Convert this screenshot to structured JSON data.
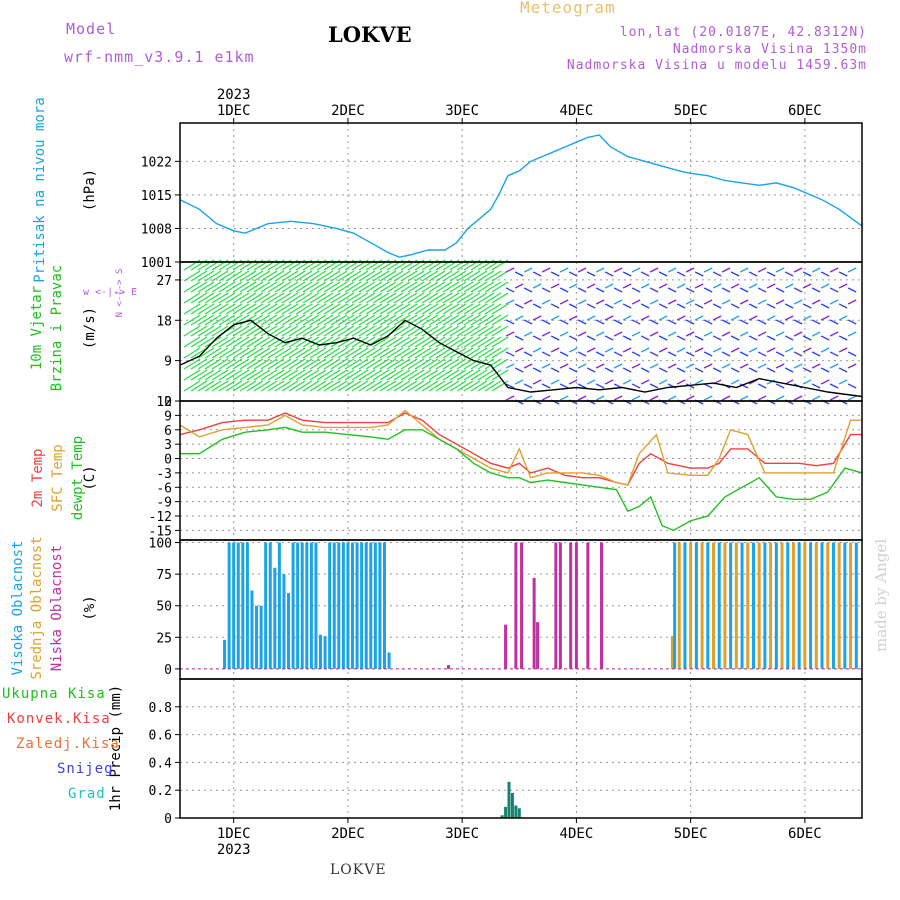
{
  "header": {
    "model_label": "Model",
    "model_name": "wrf-nmm_v3.9.1 e1km",
    "location": "LOKVE",
    "meteogram": "Meteogram",
    "lonlat": "lon,lat (20.0187E, 42.8312N)",
    "elevation": "Nadmorska Visina 1350m",
    "model_elevation": "Nadmorska Visina u modelu 1459.63m",
    "made_by": "made by Angel",
    "footer_location": "LOKVE"
  },
  "colors": {
    "pressure": "#1aa3e8",
    "wind_speed": "#000000",
    "temp_2m": "#f04040",
    "temp_sfc": "#e0a030",
    "dewpt": "#20c020",
    "cloud_high": "#1aa3e8",
    "cloud_mid": "#e0a030",
    "cloud_low": "#c030a0",
    "precip_total": "#20c020",
    "precip_conv": "#f04040",
    "precip_frozen": "#f07030",
    "precip_snow": "#4040e0",
    "precip_grad": "#20c0c0",
    "precip_bar": "#1a8070"
  },
  "chart_data": {
    "type": "line",
    "x_axis": {
      "year": "2023",
      "days": [
        "1DEC",
        "2DEC",
        "3DEC",
        "4DEC",
        "5DEC",
        "6DEC"
      ],
      "day_positions": [
        1,
        2,
        3,
        4,
        5,
        6
      ],
      "range": [
        0.53,
        6.5
      ]
    },
    "panels": [
      {
        "id": "pressure",
        "ylabel": "(hPa)",
        "side_label": [
          "Pritisak na nivou mora"
        ],
        "ylim": [
          1001,
          1030
        ],
        "yticks": [
          1001,
          1008,
          1015,
          1022
        ],
        "series": [
          {
            "key": "pressure",
            "x": [
              0.53,
              0.7,
              0.85,
              1.0,
              1.1,
              1.3,
              1.5,
              1.7,
              1.9,
              2.05,
              2.2,
              2.35,
              2.45,
              2.55,
              2.7,
              2.85,
              2.95,
              3.05,
              3.15,
              3.25,
              3.32,
              3.4,
              3.5,
              3.6,
              3.7,
              3.8,
              3.9,
              4.0,
              4.1,
              4.2,
              4.3,
              4.45,
              4.6,
              4.75,
              4.9,
              5.0,
              5.15,
              5.3,
              5.45,
              5.6,
              5.75,
              5.9,
              6.0,
              6.15,
              6.3,
              6.5
            ],
            "y": [
              1014,
              1012,
              1009,
              1007.5,
              1007,
              1009,
              1009.5,
              1009,
              1008,
              1007,
              1005,
              1003,
              1002,
              1002.5,
              1003.5,
              1003.5,
              1005,
              1008,
              1010,
              1012,
              1015,
              1019,
              1020,
              1022,
              1023,
              1024,
              1025,
              1026,
              1027,
              1027.5,
              1025,
              1023,
              1022,
              1021,
              1020,
              1019.5,
              1019,
              1018,
              1017.5,
              1017,
              1017.5,
              1016.5,
              1015.5,
              1014,
              1012,
              1008.5
            ]
          }
        ]
      },
      {
        "id": "wind",
        "ylabel": "(m/s)",
        "side_label": [
          "10m Vjetar",
          "Brzina i Pravac"
        ],
        "compass": "w <-|-> E",
        "compass_vertical": "N <-|-> S",
        "ylim": [
          0,
          31
        ],
        "yticks": [
          0,
          9,
          18,
          27
        ],
        "barb_colors_by_region": [
          {
            "from": 0.53,
            "to": 3.35,
            "colors": [
              "#20e040",
              "#a0e020",
              "#f0e040",
              "#f0a030",
              "#f04060",
              "#c020c0"
            ]
          },
          {
            "from": 3.35,
            "to": 6.5,
            "colors": [
              "#8020e0",
              "#2040f0",
              "#20a0f0",
              "#4040e0"
            ]
          }
        ],
        "series": [
          {
            "key": "wind_speed",
            "x": [
              0.53,
              0.7,
              0.85,
              1.0,
              1.15,
              1.3,
              1.45,
              1.6,
              1.75,
              1.9,
              2.05,
              2.2,
              2.35,
              2.5,
              2.65,
              2.8,
              2.95,
              3.1,
              3.25,
              3.4,
              3.6,
              3.8,
              4.0,
              4.2,
              4.4,
              4.6,
              4.8,
              5.0,
              5.2,
              5.4,
              5.6,
              5.8,
              6.0,
              6.2,
              6.5
            ],
            "y": [
              8,
              10,
              14,
              17,
              18,
              15,
              13,
              14,
              12.5,
              13,
              14,
              12.5,
              14.5,
              18,
              16,
              13,
              11,
              9,
              8,
              3,
              2,
              2.5,
              3,
              2.5,
              3,
              2,
              3,
              3.5,
              4,
              3,
              5,
              4,
              3,
              2,
              1
            ]
          }
        ]
      },
      {
        "id": "temperature",
        "ylabel": "(C)",
        "side_label": [
          "2m Temp",
          "SFC Temp",
          "dewpt Temp"
        ],
        "ylim": [
          -17,
          12
        ],
        "yticks": [
          -15,
          -12,
          -9,
          -6,
          -3,
          0,
          3,
          6,
          9,
          12
        ],
        "series": [
          {
            "key": "temp_2m",
            "x": [
              0.53,
              0.7,
              0.9,
              1.1,
              1.3,
              1.45,
              1.6,
              1.8,
              2.0,
              2.2,
              2.35,
              2.5,
              2.65,
              2.8,
              2.95,
              3.1,
              3.25,
              3.4,
              3.5,
              3.6,
              3.75,
              3.9,
              4.05,
              4.2,
              4.35,
              4.45,
              4.55,
              4.65,
              4.8,
              5.0,
              5.15,
              5.25,
              5.35,
              5.5,
              5.65,
              5.8,
              5.95,
              6.1,
              6.25,
              6.4,
              6.5
            ],
            "y": [
              5,
              6,
              7.5,
              8,
              8,
              9.5,
              8,
              7.5,
              7.5,
              7.5,
              7.5,
              9.5,
              8,
              5,
              3,
              1,
              -1,
              -2,
              -1,
              -3,
              -2,
              -3.5,
              -4,
              -4,
              -5,
              -5.5,
              -1,
              1,
              -1,
              -2,
              -2,
              -1,
              2,
              2,
              -1,
              -1,
              -1,
              -1.5,
              -1,
              5,
              5
            ]
          },
          {
            "key": "temp_sfc",
            "x": [
              0.53,
              0.7,
              0.9,
              1.1,
              1.3,
              1.45,
              1.6,
              1.8,
              2.0,
              2.2,
              2.35,
              2.5,
              2.65,
              2.8,
              2.95,
              3.1,
              3.25,
              3.4,
              3.5,
              3.6,
              3.75,
              3.9,
              4.05,
              4.2,
              4.35,
              4.45,
              4.55,
              4.7,
              4.8,
              5.0,
              5.15,
              5.25,
              5.35,
              5.5,
              5.65,
              5.8,
              5.95,
              6.1,
              6.25,
              6.4,
              6.5
            ],
            "y": [
              7,
              4.5,
              6,
              6.5,
              7,
              9,
              7,
              6.5,
              6.5,
              6.5,
              7,
              10,
              7,
              4,
              2,
              0,
              -2,
              -3,
              2,
              -4,
              -3,
              -3,
              -3,
              -3.5,
              -5,
              -5.5,
              1,
              5,
              -3,
              -3.5,
              -3.5,
              0,
              6,
              5,
              -3,
              -3,
              -3,
              -3,
              -3,
              8,
              8
            ]
          },
          {
            "key": "dewpt",
            "x": [
              0.53,
              0.7,
              0.9,
              1.1,
              1.3,
              1.45,
              1.6,
              1.8,
              2.0,
              2.2,
              2.35,
              2.5,
              2.65,
              2.8,
              2.95,
              3.1,
              3.25,
              3.4,
              3.5,
              3.6,
              3.75,
              3.9,
              4.05,
              4.2,
              4.35,
              4.45,
              4.55,
              4.65,
              4.75,
              4.85,
              5.0,
              5.15,
              5.3,
              5.45,
              5.6,
              5.75,
              5.9,
              6.05,
              6.2,
              6.35,
              6.5
            ],
            "y": [
              1,
              1,
              4,
              5.5,
              6,
              6.5,
              5.5,
              5.5,
              5,
              4.5,
              4,
              6,
              6,
              4,
              2,
              -1,
              -3,
              -4,
              -4,
              -5,
              -4.5,
              -5,
              -5.5,
              -6,
              -6.5,
              -11,
              -10,
              -8,
              -14,
              -15,
              -13,
              -12,
              -8,
              -6,
              -4,
              -8,
              -8.5,
              -8.5,
              -7,
              -2,
              -3
            ]
          }
        ]
      },
      {
        "id": "clouds",
        "ylabel": "(%)",
        "side_label": [
          "Visoka Oblacnost",
          "Srednja Oblacnost",
          "Niska Oblacnost"
        ],
        "ylim": [
          -8,
          102
        ],
        "yticks": [
          0,
          25,
          50,
          75,
          100
        ],
        "bars": [
          {
            "key": "cloud_high",
            "x": [
              0.92,
              0.96,
              1.0,
              1.04,
              1.08,
              1.12,
              1.16,
              1.2,
              1.24,
              1.28,
              1.32,
              1.36,
              1.4,
              1.44,
              1.48,
              1.52,
              1.56,
              1.6,
              1.64,
              1.68,
              1.72,
              1.76,
              1.8,
              1.84,
              1.88,
              1.92,
              1.96,
              2.0,
              2.04,
              2.08,
              2.12,
              2.16,
              2.2,
              2.24,
              2.28,
              2.32,
              2.36
            ],
            "y": [
              23,
              100,
              100,
              100,
              100,
              100,
              62,
              50,
              50,
              100,
              100,
              80,
              100,
              75,
              60,
              100,
              100,
              100,
              100,
              100,
              100,
              27,
              26,
              100,
              100,
              100,
              100,
              100,
              100,
              100,
              100,
              100,
              100,
              100,
              100,
              100,
              13
            ]
          },
          {
            "key": "cloud_low",
            "x": [
              2.88,
              3.38,
              3.47,
              3.52,
              3.63,
              3.66,
              3.82,
              3.86,
              3.95,
              4.0,
              4.1,
              4.22
            ],
            "y": [
              3,
              35,
              100,
              100,
              72,
              37,
              100,
              100,
              100,
              100,
              100,
              100
            ]
          },
          {
            "key": "cloud_mid",
            "x": [
              4.84,
              4.9,
              5.0,
              5.1,
              5.2,
              5.3,
              5.4,
              5.5,
              5.6,
              5.7,
              5.8,
              5.9,
              6.0,
              6.1,
              6.2,
              6.3,
              6.4
            ],
            "y": [
              26,
              100,
              100,
              100,
              100,
              100,
              100,
              100,
              100,
              100,
              100,
              100,
              100,
              100,
              100,
              100,
              100
            ]
          },
          {
            "key": "cloud_high",
            "x": [
              4.86,
              4.95,
              5.05,
              5.15,
              5.25,
              5.35,
              5.45,
              5.55,
              5.65,
              5.75,
              5.85,
              5.95,
              6.05,
              6.15,
              6.25,
              6.35,
              6.45
            ],
            "y": [
              100,
              100,
              100,
              100,
              100,
              100,
              100,
              100,
              100,
              100,
              100,
              100,
              100,
              100,
              100,
              100,
              100
            ]
          }
        ]
      },
      {
        "id": "precip",
        "ylabel": "1hr Precip (mm)",
        "ylim": [
          0,
          1.0
        ],
        "yticks": [
          0,
          0.2,
          0.4,
          0.6,
          0.8
        ],
        "legend": [
          "Ukupna Kisa",
          "Konvek.Kisa",
          "Zaledj.Kisa",
          "Snijeg",
          "Grad"
        ],
        "bars": [
          {
            "key": "precip_bar",
            "x": [
              3.35,
              3.38,
              3.41,
              3.44,
              3.47,
              3.5
            ],
            "y": [
              0.02,
              0.08,
              0.26,
              0.18,
              0.09,
              0.07
            ]
          }
        ]
      }
    ]
  }
}
